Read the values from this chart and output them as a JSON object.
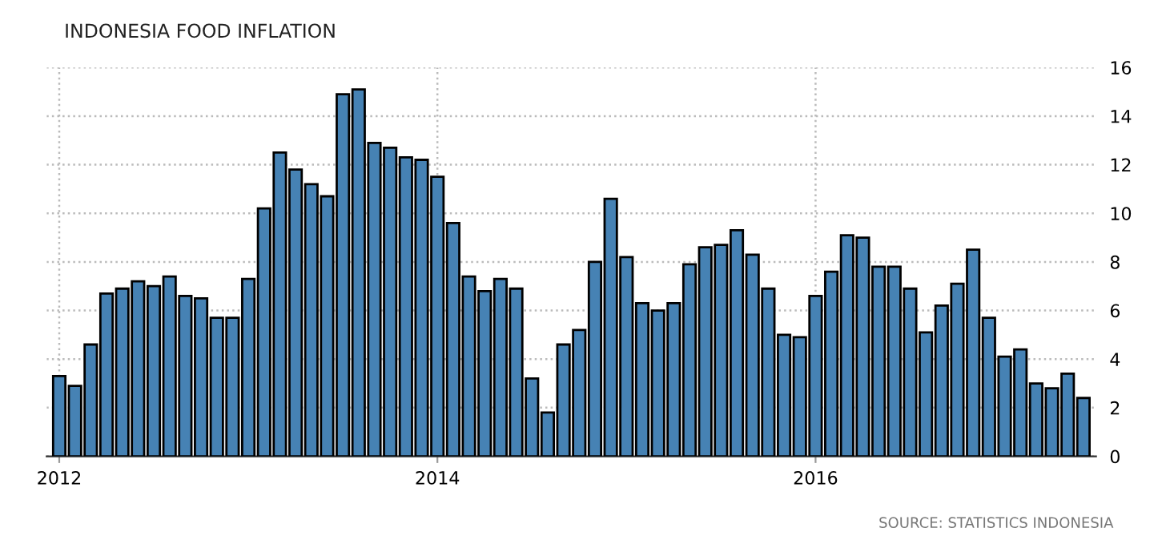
{
  "chart_data": {
    "type": "bar",
    "title": "INDONESIA FOOD INFLATION",
    "categories": [
      "2012",
      null,
      null,
      null,
      null,
      null,
      null,
      null,
      null,
      null,
      null,
      null,
      null,
      null,
      null,
      null,
      null,
      null,
      null,
      null,
      null,
      null,
      null,
      null,
      "2014",
      null,
      null,
      null,
      null,
      null,
      null,
      null,
      null,
      null,
      null,
      null,
      null,
      null,
      null,
      null,
      null,
      null,
      null,
      null,
      null,
      null,
      null,
      null,
      "2016",
      null,
      null,
      null,
      null,
      null,
      null,
      null,
      null,
      null,
      null,
      null,
      null,
      null,
      null,
      null,
      null,
      null
    ],
    "values": [
      3.3,
      2.9,
      4.6,
      6.7,
      6.9,
      7.2,
      7.0,
      7.4,
      6.6,
      6.5,
      5.7,
      5.7,
      7.3,
      10.2,
      12.5,
      11.8,
      11.2,
      10.7,
      14.9,
      15.1,
      12.9,
      12.7,
      12.3,
      12.2,
      11.5,
      9.6,
      7.4,
      6.8,
      7.3,
      6.9,
      3.2,
      1.8,
      4.6,
      5.2,
      8.0,
      10.6,
      8.2,
      6.3,
      6.0,
      6.3,
      7.9,
      8.6,
      8.7,
      9.3,
      8.3,
      6.9,
      5.0,
      4.9,
      6.6,
      7.6,
      9.1,
      9.0,
      7.8,
      7.8,
      6.9,
      5.1,
      6.2,
      7.1,
      8.5,
      5.7,
      4.1,
      4.4,
      3.0,
      2.8,
      3.4,
      2.4
    ],
    "color": "#4682b4",
    "ylim": [
      0,
      16
    ],
    "yticks": [
      0,
      2,
      4,
      6,
      8,
      10,
      12,
      14,
      16
    ],
    "grid": true,
    "annotations": [
      "SOURCE: STATISTICS INDONESIA"
    ]
  }
}
